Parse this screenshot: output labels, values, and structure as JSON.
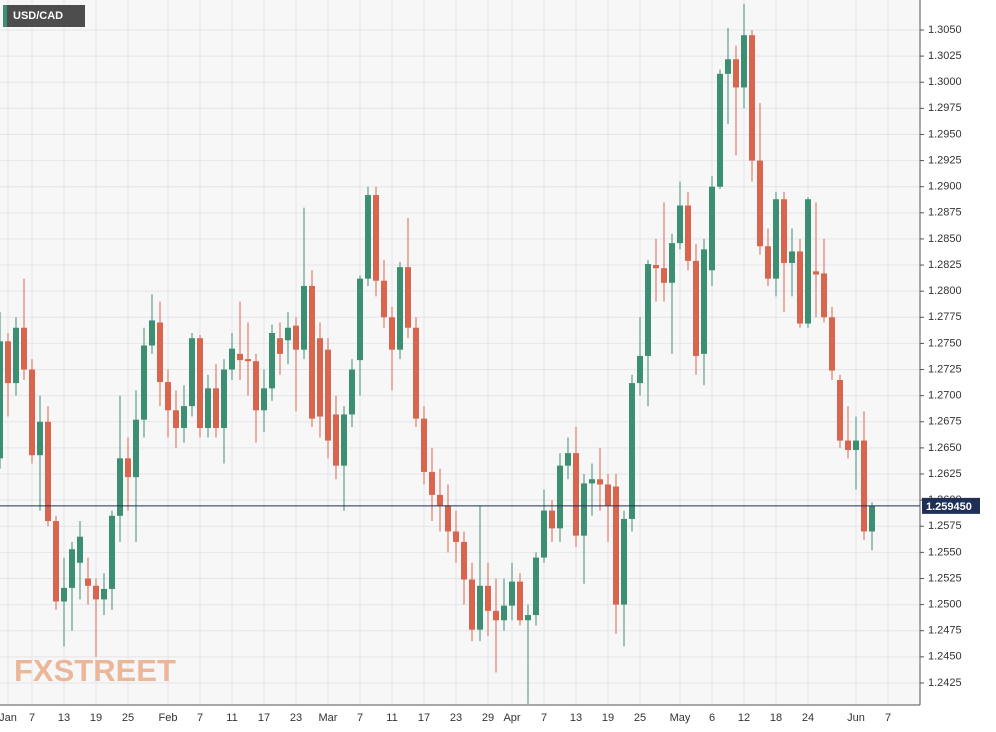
{
  "chart_data": {
    "type": "candlestick",
    "title": "USD/CAD",
    "watermark": "FXSTREET",
    "up_color": "#3d8f73",
    "down_color": "#d9654f",
    "grid": true,
    "last_price": {
      "value": 1.25945,
      "label": "1.259450"
    },
    "categories": [
      null,
      "Jan",
      null,
      null,
      "7",
      null,
      null,
      null,
      "13",
      null,
      null,
      null,
      "19",
      null,
      null,
      null,
      "25",
      null,
      null,
      null,
      null,
      "Feb",
      null,
      null,
      null,
      "7",
      null,
      null,
      null,
      "11",
      null,
      null,
      null,
      "17",
      null,
      null,
      null,
      "23",
      null,
      null,
      null,
      "Mar",
      null,
      null,
      null,
      "7",
      null,
      null,
      null,
      "11",
      null,
      null,
      null,
      "17",
      null,
      null,
      null,
      "23",
      null,
      null,
      null,
      "29",
      null,
      null,
      "Apr",
      null,
      null,
      null,
      "7",
      null,
      null,
      null,
      "13",
      null,
      null,
      null,
      "19",
      null,
      null,
      null,
      "25",
      null,
      null,
      null,
      null,
      "May",
      null,
      null,
      null,
      "6",
      null,
      null,
      null,
      "12",
      null,
      null,
      null,
      "18",
      null,
      null,
      null,
      "24",
      null,
      null,
      null,
      null,
      null,
      "Jun",
      null,
      null,
      null,
      "7"
    ],
    "open": [
      1.264,
      1.2752,
      1.2712,
      1.2765,
      1.2725,
      1.2643,
      1.2675,
      1.258,
      1.2503,
      1.2516,
      1.254,
      1.2525,
      1.2518,
      1.2505,
      1.2515,
      1.2585,
      1.264,
      1.2622,
      1.2677,
      1.2748,
      1.277,
      1.2713,
      1.2686,
      1.2669,
      1.269,
      1.2755,
      1.2669,
      1.2707,
      1.2669,
      1.2725,
      1.274,
      1.2735,
      1.2733,
      1.2686,
      1.2707,
      1.2755,
      1.2753,
      1.2767,
      1.2744,
      1.2805,
      1.2755,
      1.2744,
      1.2682,
      1.2633,
      1.2682,
      1.2734,
      1.2812,
      1.2892,
      1.281,
      1.2775,
      1.2744,
      1.2823,
      1.2765,
      1.2678,
      1.2627,
      1.2605,
      1.2595,
      1.257,
      1.256,
      1.2524,
      1.2476,
      1.2518,
      1.2494,
      1.2485,
      1.2499,
      1.2522,
      1.2485,
      1.249,
      1.2545,
      1.259,
      1.2573,
      1.2633,
      1.2645,
      1.2566,
      1.2616,
      1.262,
      1.2615,
      1.2613,
      1.25,
      1.2582,
      1.2712,
      1.2738,
      1.2825,
      1.2822,
      1.2808,
      1.2846,
      1.2882,
      1.2829,
      1.274,
      1.282,
      1.29,
      1.3008,
      1.3022,
      1.2995,
      1.3045,
      1.2925,
      1.2843,
      1.2812,
      1.2888,
      1.2827,
      1.2838,
      1.2769,
      1.2819,
      1.2817,
      1.2775,
      1.2715,
      1.2657,
      1.2648,
      1.2657,
      1.257,
      null,
      null
    ],
    "high": [
      1.278,
      1.276,
      1.2775,
      1.2812,
      1.2735,
      1.27,
      1.269,
      1.2585,
      1.2545,
      1.256,
      1.258,
      1.2545,
      1.2525,
      1.253,
      1.259,
      1.27,
      1.266,
      1.2705,
      1.2765,
      1.2797,
      1.279,
      1.2725,
      1.2705,
      1.271,
      1.276,
      1.2758,
      1.272,
      1.273,
      1.2735,
      1.276,
      1.279,
      1.277,
      1.274,
      1.2725,
      1.2768,
      1.277,
      1.278,
      1.2775,
      1.288,
      1.282,
      1.277,
      1.2755,
      1.27,
      1.269,
      1.2735,
      1.2815,
      1.29,
      1.29,
      1.283,
      1.2785,
      1.2828,
      1.287,
      1.2775,
      1.269,
      1.265,
      1.263,
      1.2615,
      1.259,
      1.257,
      1.254,
      1.2595,
      1.254,
      1.2525,
      1.2525,
      1.254,
      1.253,
      1.25,
      1.255,
      1.261,
      1.26,
      1.2645,
      1.266,
      1.267,
      1.2625,
      1.2635,
      1.265,
      1.2625,
      1.2625,
      1.259,
      1.272,
      1.2775,
      1.283,
      1.285,
      1.2885,
      1.2855,
      1.2905,
      1.2895,
      1.2845,
      1.285,
      1.291,
      1.3012,
      1.3052,
      1.3035,
      1.3075,
      1.305,
      1.298,
      1.286,
      1.2895,
      1.2895,
      1.286,
      1.285,
      1.289,
      1.2885,
      1.285,
      1.2785,
      1.272,
      1.269,
      1.268,
      1.2685,
      1.2598,
      null,
      null
    ],
    "low": [
      1.263,
      1.268,
      1.27,
      1.2715,
      1.2635,
      1.259,
      1.2575,
      1.2495,
      1.246,
      1.2475,
      1.2505,
      1.25,
      1.245,
      1.249,
      1.2495,
      1.256,
      1.259,
      1.256,
      1.266,
      1.274,
      1.269,
      1.266,
      1.265,
      1.2655,
      1.268,
      1.266,
      1.266,
      1.266,
      1.2635,
      1.2715,
      1.2715,
      1.27,
      1.2655,
      1.2665,
      1.2695,
      1.272,
      1.273,
      1.2685,
      1.2735,
      1.267,
      1.266,
      1.264,
      1.262,
      1.259,
      1.267,
      1.27,
      1.2805,
      1.2795,
      1.2765,
      1.2705,
      1.2735,
      1.2755,
      1.267,
      1.2615,
      1.258,
      1.257,
      1.255,
      1.254,
      1.25,
      1.2465,
      1.2465,
      1.247,
      1.2435,
      1.2475,
      1.2485,
      1.248,
      1.2405,
      1.248,
      1.254,
      1.256,
      1.256,
      1.262,
      1.2555,
      1.252,
      1.2585,
      1.259,
      1.256,
      1.2472,
      1.246,
      1.257,
      1.27,
      1.269,
      1.279,
      1.279,
      1.274,
      1.284,
      1.282,
      1.272,
      1.271,
      1.2805,
      1.2898,
      1.296,
      1.293,
      1.2975,
      1.2905,
      1.2835,
      1.2805,
      1.2795,
      1.278,
      1.2795,
      1.2765,
      1.2765,
      1.2775,
      1.277,
      1.2715,
      1.265,
      1.264,
      1.261,
      1.2562,
      1.2552,
      null,
      null
    ],
    "close": [
      1.2752,
      1.2712,
      1.2765,
      1.2725,
      1.2643,
      1.2675,
      1.258,
      1.2503,
      1.2516,
      1.2553,
      1.2565,
      1.2518,
      1.2505,
      1.2515,
      1.2585,
      1.264,
      1.2622,
      1.2677,
      1.2748,
      1.2772,
      1.2713,
      1.2686,
      1.2669,
      1.269,
      1.2755,
      1.2669,
      1.2707,
      1.2669,
      1.2725,
      1.2745,
      1.2734,
      1.2733,
      1.2686,
      1.2707,
      1.276,
      1.274,
      1.2765,
      1.2744,
      1.2805,
      1.2678,
      1.268,
      1.2657,
      1.2633,
      1.2682,
      1.2725,
      1.2812,
      1.2892,
      1.281,
      1.2775,
      1.2744,
      1.2823,
      1.2765,
      1.2678,
      1.2627,
      1.2605,
      1.2595,
      1.257,
      1.256,
      1.2524,
      1.2476,
      1.2518,
      1.2494,
      1.2485,
      1.2499,
      1.2522,
      1.2485,
      1.249,
      1.2545,
      1.259,
      1.2573,
      1.2633,
      1.2645,
      1.2566,
      1.2616,
      1.262,
      1.2615,
      1.2595,
      1.25,
      1.2582,
      1.2712,
      1.2738,
      1.2826,
      1.2822,
      1.2808,
      1.2846,
      1.2882,
      1.2829,
      1.2738,
      1.284,
      1.29,
      1.3008,
      1.3022,
      1.2995,
      1.3045,
      1.2925,
      1.2843,
      1.2812,
      1.2888,
      1.2827,
      1.2838,
      1.2769,
      1.2888,
      1.2816,
      1.2775,
      1.2724,
      1.2657,
      1.2648,
      1.2657,
      1.257,
      1.25945,
      null,
      null
    ],
    "ylim": [
      1.24039,
      1.30787
    ],
    "yticks": [
      1.2425,
      {
        "value": 1.245,
        "label": "1.2450"
      },
      1.2475,
      {
        "value": 1.25,
        "label": "1.2500"
      },
      1.2525,
      {
        "value": 1.255,
        "label": "1.2550"
      },
      1.2575,
      {
        "value": 1.26,
        "label": "1.2600"
      },
      1.2625,
      {
        "value": 1.265,
        "label": "1.2650"
      },
      1.2675,
      {
        "value": 1.27,
        "label": "1.2700"
      },
      1.2725,
      {
        "value": 1.275,
        "label": "1.2750"
      },
      1.2775,
      {
        "value": 1.28,
        "label": "1.2800"
      },
      1.2825,
      {
        "value": 1.285,
        "label": "1.2850"
      },
      1.2875,
      {
        "value": 1.29,
        "label": "1.2900"
      },
      1.2925,
      {
        "value": 1.295,
        "label": "1.2950"
      },
      1.2975,
      {
        "value": 1.3,
        "label": "1.3000"
      },
      1.3025,
      {
        "value": 1.305,
        "label": "1.3050"
      }
    ]
  }
}
